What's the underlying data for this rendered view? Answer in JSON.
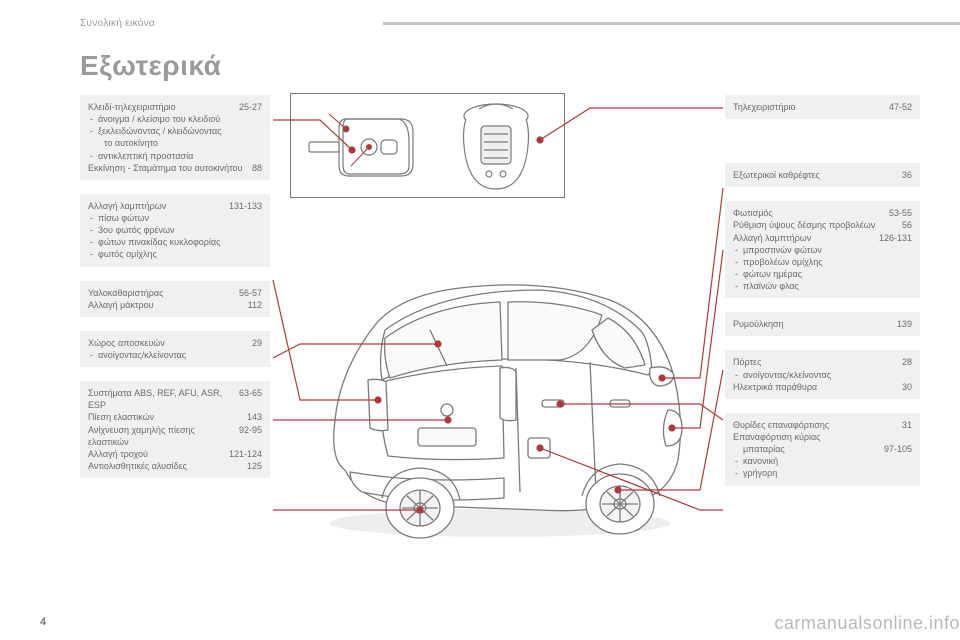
{
  "section_label": "Συνολική εικόνα",
  "page_title": "Εξωτερικά",
  "page_number": "4",
  "watermark": "carmanualsonline.info",
  "colors": {
    "box_bg": "#f0f0f0",
    "text": "#6b6b6b",
    "muted": "#9a9a9a",
    "rule": "#c5c5c5",
    "callout": "#b03a3a",
    "stroke": "#7a7a7a"
  },
  "left_boxes": [
    {
      "lines": [
        {
          "label": "Κλειδί-τηλεχειριστήριο",
          "page": "25-27"
        },
        {
          "bullet": "άνοιγμα / κλείσιμο του κλειδιού"
        },
        {
          "bullet": "ξεκλειδώνοντας / κλειδώνοντας"
        },
        {
          "indent": "το αυτοκίνητο"
        },
        {
          "bullet": "αντικλεπτική προστασία"
        },
        {
          "label": "Εκκίνηση - Σταμάτημα του αυτοκινήτου",
          "page": "88"
        }
      ]
    },
    {
      "lines": [
        {
          "label": "Αλλαγή λαμπτήρων",
          "page": "131-133"
        },
        {
          "bullet": "πίσω φώτων"
        },
        {
          "bullet": "3ου φωτός φρένων"
        },
        {
          "bullet": "φώτων πινακίδας κυκλοφορίας"
        },
        {
          "bullet": "φωτός ομίχλης"
        }
      ]
    },
    {
      "lines": [
        {
          "label": "Υαλοκαθαριστήρας",
          "page": "56-57"
        },
        {
          "label": "Αλλαγή μάκτρου",
          "page": "112"
        }
      ]
    },
    {
      "lines": [
        {
          "label": "Χώρος αποσκευών",
          "page": "29"
        },
        {
          "bullet": "ανοίγοντας/κλείνοντας"
        }
      ]
    },
    {
      "lines": [
        {
          "label": "Συστήματα ABS, REF, AFU, ASR, ESP",
          "page": "63-65"
        },
        {
          "label": "Πίεση ελαστικών",
          "page": "143"
        },
        {
          "label": "Ανίχνευση χαμηλής πίεσης ελαστικών",
          "page": "92-95"
        },
        {
          "label": "Αλλαγή τροχού",
          "page": "121-124"
        },
        {
          "label": "Αντιολισθητικές αλυσίδες",
          "page": "125"
        }
      ]
    }
  ],
  "right_boxes": [
    {
      "lines": [
        {
          "label": "Τηλεχειριστήριο",
          "page": "47-52"
        }
      ]
    },
    {
      "lines": [
        {
          "label": "Εξωτερικοί καθρέφτες",
          "page": "36"
        }
      ]
    },
    {
      "lines": [
        {
          "label": "Φωτισμός",
          "page": "53-55"
        },
        {
          "label": "Ρύθμιση ύψους δέσμης προβολέων",
          "page": "56"
        },
        {
          "label": "Αλλαγή λαμπτήρων",
          "page": "126-131"
        },
        {
          "bullet": "μπροστινών φώτων"
        },
        {
          "bullet": "προβολέων ομίχλης"
        },
        {
          "bullet": "φώτων ημέρας"
        },
        {
          "bullet": "πλαϊνών φλας"
        }
      ]
    },
    {
      "lines": [
        {
          "label": "Ρυμούλκηση",
          "page": "139"
        }
      ]
    },
    {
      "lines": [
        {
          "label": "Πόρτες",
          "page": "28"
        },
        {
          "bullet": "ανοίγοντας/κλείνοντας"
        },
        {
          "label": "Ηλεκτρικά παράθυρα",
          "page": "30"
        }
      ]
    },
    {
      "lines": [
        {
          "label": "Θυρίδες επαναφόρτισης",
          "page": "31"
        },
        {
          "label": "Επαναφόρτιση κύριας"
        },
        {
          "label_indent": "μπαταρίας",
          "page": "97-105"
        },
        {
          "bullet": "κανονική"
        },
        {
          "bullet": "γρήγορη"
        }
      ]
    }
  ]
}
